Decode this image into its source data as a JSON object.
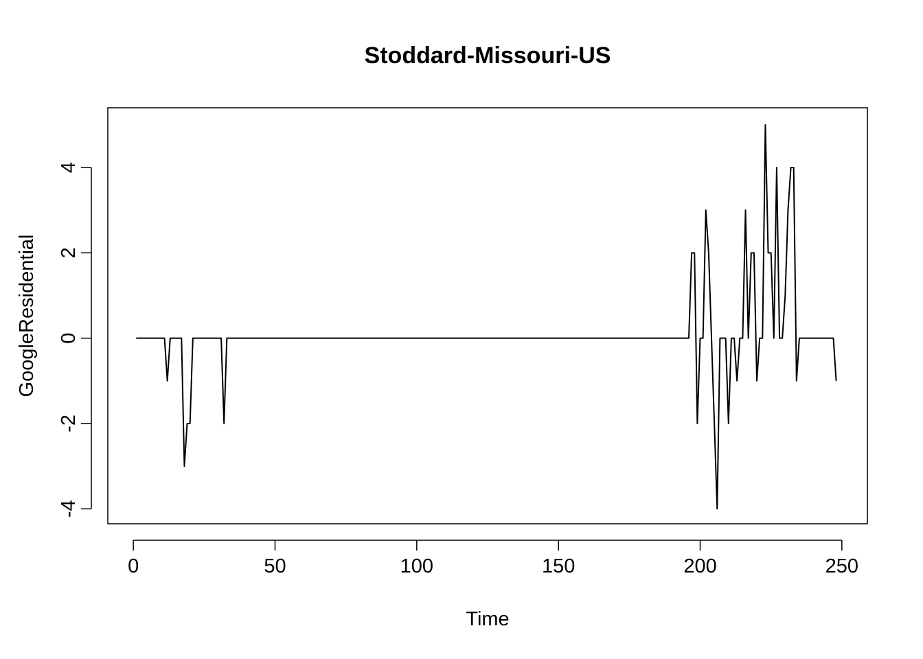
{
  "chart_data": {
    "type": "line",
    "title": "Stoddard-Missouri-US",
    "xlabel": "Time",
    "ylabel": "GoogleResidential",
    "xlim": [
      -9,
      259
    ],
    "ylim": [
      -4.35,
      5.4
    ],
    "x_ticks": [
      0,
      50,
      100,
      150,
      200,
      250
    ],
    "x_tick_labels": [
      "0",
      "50",
      "100",
      "150",
      "200",
      "250"
    ],
    "y_ticks": [
      -4,
      -2,
      0,
      2,
      4
    ],
    "y_tick_labels": [
      "-4",
      "-2",
      "0",
      "2",
      "4"
    ],
    "grid": false,
    "line_color": "#000000",
    "series": [
      {
        "x": [
          1,
          11,
          12,
          13,
          14,
          17,
          18,
          19,
          20,
          21,
          22,
          31,
          32,
          33,
          34,
          196,
          197,
          198,
          199,
          200,
          201,
          202,
          203,
          204,
          205,
          206,
          207,
          208,
          209,
          210,
          211,
          212,
          213,
          214,
          215,
          216,
          217,
          218,
          219,
          220,
          221,
          222,
          223,
          224,
          225,
          226,
          227,
          228,
          229,
          230,
          231,
          232,
          233,
          234,
          235,
          236,
          247,
          248
        ],
        "values": [
          0,
          0,
          -1,
          0,
          0,
          0,
          -3,
          -2,
          -2,
          0,
          0,
          0,
          -2,
          0,
          0,
          0,
          2,
          2,
          -2,
          0,
          0,
          3,
          2,
          0,
          -2,
          -4,
          0,
          0,
          0,
          -2,
          0,
          0,
          -1,
          0,
          0,
          3,
          0,
          2,
          2,
          -1,
          0,
          0,
          5,
          2,
          2,
          0,
          4,
          0,
          0,
          1,
          3,
          4,
          4,
          -1,
          0,
          0,
          0,
          -1
        ]
      }
    ]
  }
}
